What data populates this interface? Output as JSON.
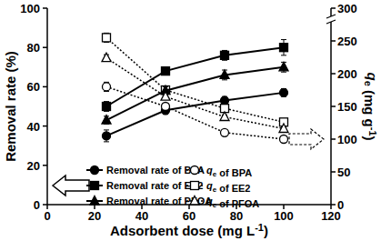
{
  "chart_data": {
    "type": "line",
    "xlabel": "Adsorbent dose (mg L-1)",
    "ylabel": "Removal rate (%)",
    "y2label": "qe (mg g-1)",
    "x": [
      25,
      50,
      75,
      100
    ],
    "xlim": [
      0,
      120
    ],
    "xticks": [
      0,
      20,
      40,
      60,
      80,
      100,
      120
    ],
    "ylim": [
      0,
      100
    ],
    "yticks": [
      0,
      20,
      40,
      60,
      80,
      100
    ],
    "y2lim": [
      0,
      300
    ],
    "y2ticks": [
      0,
      50,
      100,
      150,
      200,
      250,
      300
    ],
    "legend": "bottom",
    "series": [
      {
        "name": "Removal rate of BPA",
        "color": "#000000",
        "marker": "circle",
        "line_style": "solid",
        "values": [
          35,
          48,
          53,
          57
        ],
        "errors": [
          3,
          2,
          2,
          2
        ]
      },
      {
        "name": "qe of BPA",
        "color": "#000000",
        "marker": "circle-open",
        "line_style": "dotted",
        "axis": "y2",
        "values": [
          180,
          150,
          110,
          100
        ],
        "errors": [
          7,
          3,
          2,
          3
        ]
      },
      {
        "name": "Removal rate of EE2",
        "color": "#000000",
        "marker": "square",
        "line_style": "solid",
        "values": [
          50,
          68,
          76,
          80
        ],
        "errors": [
          2.5,
          1.5,
          2.5,
          4
        ]
      },
      {
        "name": "qe of EE2",
        "color": "#000000",
        "marker": "square-open",
        "line_style": "dotted",
        "axis": "y2",
        "values": [
          255,
          175,
          147,
          126
        ],
        "errors": [
          7,
          3,
          3,
          4
        ]
      },
      {
        "name": "Removal rate of PFOA",
        "color": "#000000",
        "marker": "triangle",
        "line_style": "solid",
        "values": [
          43,
          58,
          66,
          70
        ],
        "errors": [
          2,
          2,
          2.5,
          2.5
        ]
      },
      {
        "name": "qe of PFOA",
        "color": "#000000",
        "marker": "triangle-open",
        "line_style": "dotted",
        "axis": "y2",
        "values": [
          224,
          165,
          134,
          116
        ],
        "errors": [
          5,
          3,
          3,
          3
        ]
      }
    ]
  }
}
